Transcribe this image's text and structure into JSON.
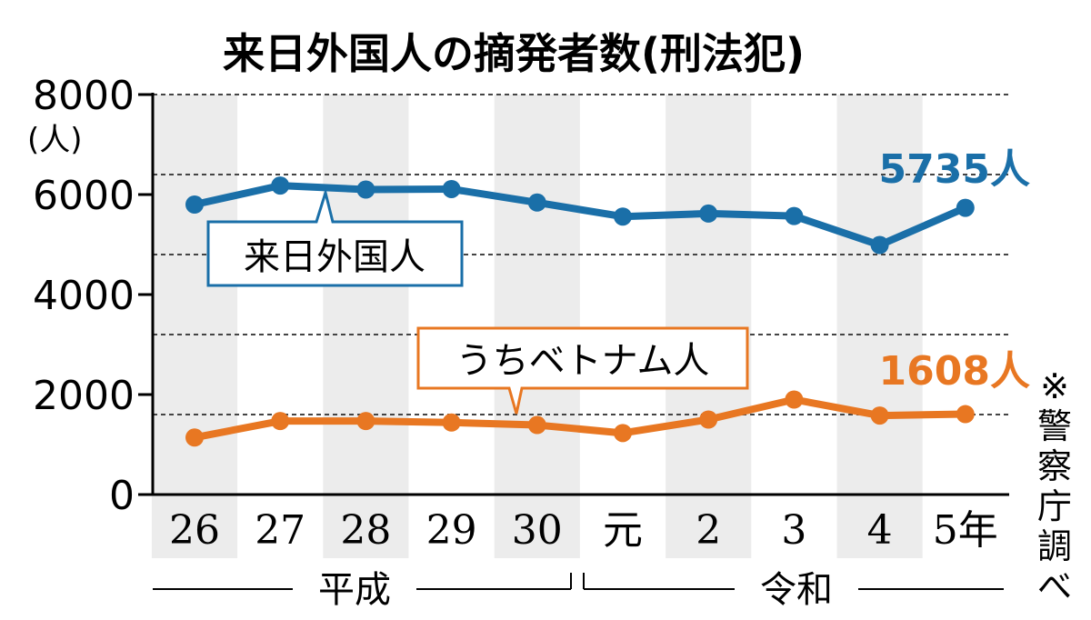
{
  "chart_data": {
    "type": "line",
    "title": "来日外国人の摘発者数(刑法犯)",
    "ylabel": "(人)",
    "ylim": [
      0,
      8000
    ],
    "yticks": [
      "8000",
      "6000",
      "4000",
      "2000",
      "0"
    ],
    "categories": [
      "26",
      "27",
      "28",
      "29",
      "30",
      "元",
      "2",
      "3",
      "4",
      "5年"
    ],
    "eras": [
      "平成",
      "令和"
    ],
    "series": [
      {
        "name": "来日外国人",
        "color": "#1a6fa8",
        "values": [
          5800,
          6180,
          6100,
          6110,
          5840,
          5560,
          5620,
          5570,
          4990,
          5735
        ],
        "end_label": "5735人"
      },
      {
        "name": "うちベトナム人",
        "color": "#e87722",
        "values": [
          1140,
          1470,
          1470,
          1440,
          1390,
          1230,
          1500,
          1900,
          1580,
          1608
        ],
        "end_label": "1608人"
      }
    ],
    "grid": true,
    "source": "※警察庁調べ"
  }
}
